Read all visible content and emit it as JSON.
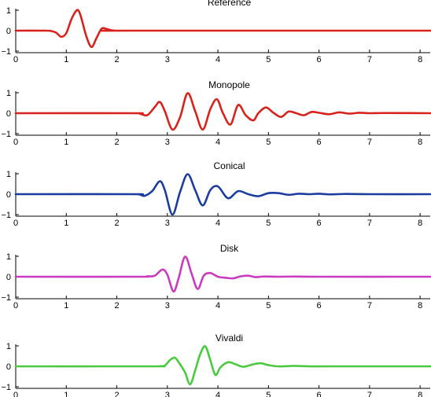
{
  "chart_data": [
    {
      "type": "line",
      "title": "Reference",
      "xlim": [
        0,
        8.2
      ],
      "ylim": [
        -1,
        1
      ],
      "xticks": [
        "0",
        "1",
        "2",
        "3",
        "4",
        "5",
        "6",
        "7",
        "8"
      ],
      "yticks": [
        "1",
        "0",
        "−1"
      ],
      "series": [
        {
          "color": "#d7231e",
          "x": [
            0,
            0.6,
            0.7,
            0.8,
            0.9,
            1.0,
            1.1,
            1.2,
            1.25,
            1.3,
            1.4,
            1.5,
            1.6,
            1.7,
            1.8,
            1.9,
            2.0,
            2.2,
            8.2
          ],
          "y": [
            0,
            0,
            -0.02,
            -0.1,
            -0.3,
            -0.12,
            0.55,
            0.98,
            0.95,
            0.6,
            -0.3,
            -0.8,
            -0.35,
            0.1,
            0.08,
            0.02,
            0,
            0,
            0
          ]
        }
      ]
    },
    {
      "type": "line",
      "title": "Monopole",
      "xlim": [
        0,
        8.2
      ],
      "ylim": [
        -1,
        1
      ],
      "xticks": [
        "0",
        "1",
        "2",
        "3",
        "4",
        "5",
        "6",
        "7",
        "8"
      ],
      "yticks": [
        "1",
        "0",
        "−1"
      ],
      "series": [
        {
          "color": "#d7231e",
          "x": [
            0,
            2.3,
            2.45,
            2.6,
            2.75,
            2.85,
            2.95,
            3.1,
            3.25,
            3.4,
            3.55,
            3.7,
            3.85,
            3.98,
            4.1,
            4.25,
            4.4,
            4.55,
            4.7,
            4.8,
            4.95,
            5.1,
            5.25,
            5.4,
            5.55,
            5.7,
            5.85,
            6.0,
            6.2,
            6.4,
            6.6,
            6.8,
            7.0,
            7.3,
            8.2
          ],
          "y": [
            0,
            0,
            -0.02,
            -0.1,
            0.3,
            0.55,
            0.1,
            -0.8,
            -0.2,
            0.98,
            0.1,
            -0.8,
            0.2,
            0.68,
            0.0,
            -0.55,
            0.4,
            -0.1,
            -0.35,
            0.0,
            0.28,
            0.02,
            -0.18,
            0.08,
            0.0,
            -0.1,
            0.06,
            0.02,
            -0.05,
            0.04,
            -0.02,
            0.02,
            0,
            0.01,
            0
          ]
        }
      ]
    },
    {
      "type": "line",
      "title": "Conical",
      "xlim": [
        0,
        8.2
      ],
      "ylim": [
        -1,
        1
      ],
      "xticks": [
        "0",
        "1",
        "2",
        "3",
        "4",
        "5",
        "6",
        "7",
        "8"
      ],
      "yticks": [
        "1",
        "0",
        "−1"
      ],
      "series": [
        {
          "color": "#1d3d9e",
          "x": [
            0,
            2.3,
            2.45,
            2.55,
            2.7,
            2.85,
            2.95,
            3.1,
            3.25,
            3.4,
            3.55,
            3.7,
            3.85,
            4.0,
            4.2,
            4.4,
            4.6,
            4.8,
            5.0,
            5.2,
            5.4,
            5.6,
            5.8,
            6.0,
            6.2,
            6.5,
            7.0,
            8.2
          ],
          "y": [
            0,
            0,
            -0.02,
            -0.08,
            0.15,
            0.63,
            0.2,
            -1.0,
            0.1,
            0.98,
            0.2,
            -0.55,
            0.2,
            0.38,
            -0.2,
            0.15,
            0.0,
            -0.1,
            0.05,
            0.05,
            -0.03,
            0.02,
            0.0,
            0.02,
            -0.01,
            0.01,
            0,
            0
          ]
        }
      ]
    },
    {
      "type": "line",
      "title": "Disk",
      "xlim": [
        0,
        8.2
      ],
      "ylim": [
        -1,
        1
      ],
      "xticks": [
        "0",
        "1",
        "2",
        "3",
        "4",
        "5",
        "6",
        "7",
        "8"
      ],
      "yticks": [
        "1",
        "0",
        "−1"
      ],
      "series": [
        {
          "color": "#c93bbf",
          "x": [
            0,
            2.4,
            2.6,
            2.75,
            2.9,
            3.0,
            3.12,
            3.22,
            3.35,
            3.48,
            3.6,
            3.72,
            3.85,
            4.0,
            4.15,
            4.3,
            4.45,
            4.6,
            4.75,
            4.9,
            5.2,
            5.5,
            6.0,
            8.2
          ],
          "y": [
            0,
            0,
            0.02,
            0.05,
            0.35,
            0.1,
            -0.72,
            -0.1,
            0.98,
            0.15,
            -0.6,
            0.05,
            0.18,
            0.0,
            -0.05,
            -0.08,
            0.02,
            0.05,
            -0.02,
            0.01,
            0,
            0.01,
            0,
            0
          ]
        }
      ]
    },
    {
      "type": "line",
      "title": "Vivaldi",
      "xlim": [
        0,
        8.2
      ],
      "ylim": [
        -1,
        1
      ],
      "xticks": [
        "0",
        "1",
        "2",
        "3",
        "4",
        "5",
        "6",
        "7",
        "8"
      ],
      "yticks": [
        "1",
        "0",
        "−1"
      ],
      "series": [
        {
          "color": "#4bc940",
          "x": [
            0,
            2.7,
            2.85,
            2.95,
            3.05,
            3.15,
            3.25,
            3.35,
            3.45,
            3.55,
            3.65,
            3.75,
            3.85,
            3.95,
            4.05,
            4.2,
            4.35,
            4.5,
            4.7,
            4.85,
            5.0,
            5.2,
            5.5,
            5.8,
            6.2,
            8.2
          ],
          "y": [
            0,
            0,
            0.01,
            0.04,
            0.3,
            0.42,
            0.1,
            -0.3,
            -0.88,
            -0.2,
            0.6,
            0.98,
            0.3,
            -0.42,
            -0.05,
            0.2,
            0.1,
            -0.02,
            0.1,
            0.15,
            0.06,
            0.0,
            0.02,
            0.0,
            0.0,
            0
          ]
        }
      ]
    }
  ]
}
